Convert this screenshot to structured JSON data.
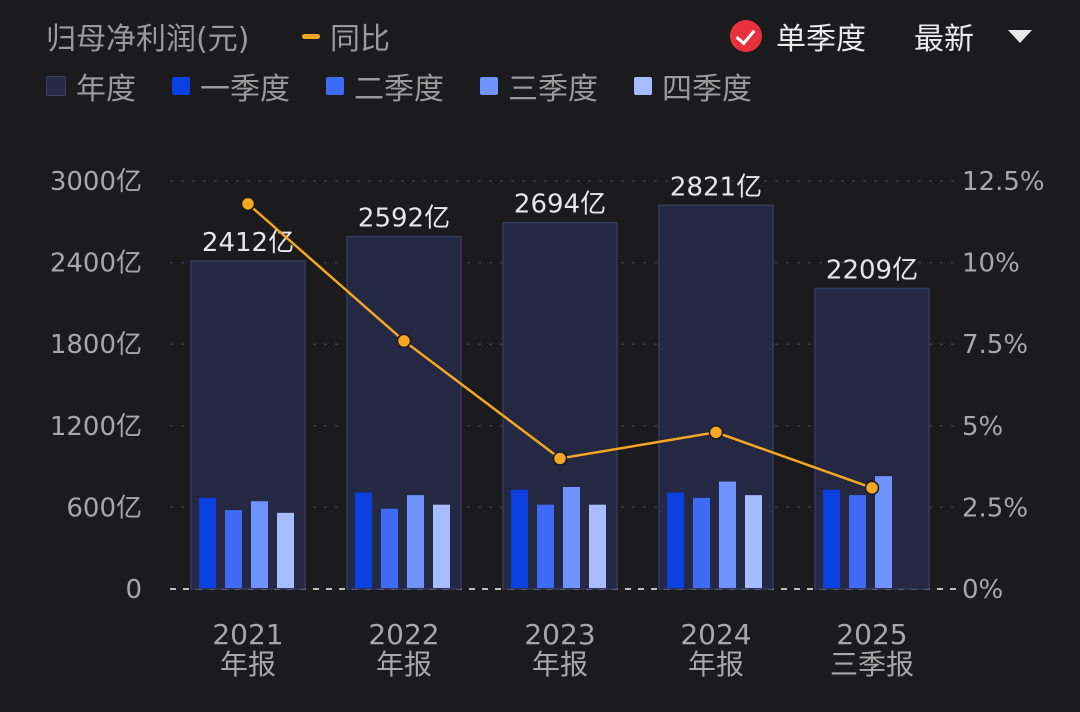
{
  "header": {
    "title": "归母净利润(元)",
    "yoy_label": "同比",
    "single_quarter_label": "单季度",
    "latest_label": "最新"
  },
  "legend": {
    "items": [
      {
        "label": "年度",
        "color": "#262a44"
      },
      {
        "label": "一季度",
        "color": "#0a3fe0"
      },
      {
        "label": "二季度",
        "color": "#3d6bf5"
      },
      {
        "label": "三季度",
        "color": "#6f93ff"
      },
      {
        "label": "四季度",
        "color": "#a6bcff"
      }
    ]
  },
  "chart_data": {
    "type": "bar",
    "title": "归母净利润(元)",
    "categories": [
      "2021 年报",
      "2022 年报",
      "2023 年报",
      "2024 年报",
      "2025 三季报"
    ],
    "category_lines": [
      [
        "2021",
        "年报"
      ],
      [
        "2022",
        "年报"
      ],
      [
        "2023",
        "年报"
      ],
      [
        "2024",
        "年报"
      ],
      [
        "2025",
        "三季报"
      ]
    ],
    "y_left": {
      "min": 0,
      "max": 3000,
      "ticks": [
        0,
        600,
        1200,
        1800,
        2400,
        3000
      ],
      "tick_labels": [
        "0",
        "600亿",
        "1200亿",
        "1800亿",
        "2400亿",
        "3000亿"
      ]
    },
    "y_right": {
      "min": 0,
      "max": 12.5,
      "ticks": [
        0,
        2.5,
        5,
        7.5,
        10,
        12.5
      ],
      "tick_labels": [
        "0%",
        "2.5%",
        "5%",
        "7.5%",
        "10%",
        "12.5%"
      ]
    },
    "annual": {
      "name": "年度",
      "values": [
        2412,
        2592,
        2694,
        2821,
        2209
      ],
      "labels": [
        "2412亿",
        "2592亿",
        "2694亿",
        "2821亿",
        "2209亿"
      ]
    },
    "quarters": [
      {
        "name": "一季度",
        "values": [
          670,
          710,
          730,
          710,
          730
        ]
      },
      {
        "name": "二季度",
        "values": [
          580,
          590,
          620,
          670,
          690
        ]
      },
      {
        "name": "三季度",
        "values": [
          645,
          690,
          750,
          790,
          830
        ]
      },
      {
        "name": "四季度",
        "values": [
          560,
          620,
          620,
          690,
          null
        ]
      }
    ],
    "yoy": {
      "name": "同比",
      "axis": "right",
      "values": [
        11.8,
        7.6,
        4.0,
        4.8,
        3.1
      ]
    },
    "grid": true,
    "legend_position": "top-left"
  }
}
